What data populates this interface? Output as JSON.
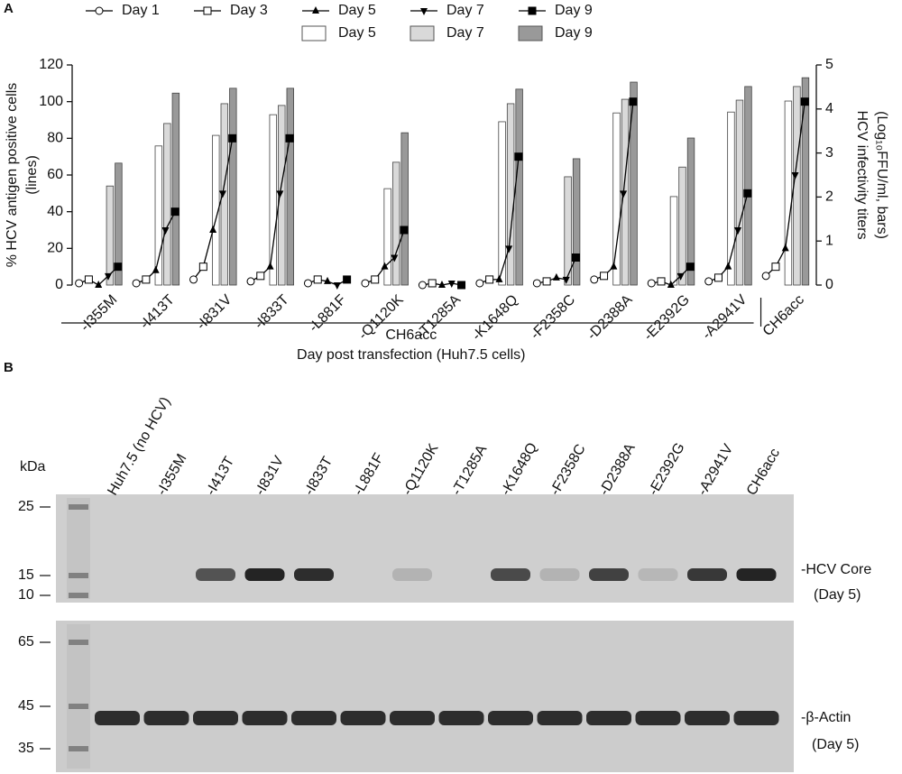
{
  "panel_labels": [
    "A",
    "B"
  ],
  "chart_data": {
    "type": "bar",
    "categories": [
      "-I355M",
      "-I413T",
      "-I831V",
      "-I833T",
      "-L881F",
      "-Q1120K",
      "-T1285A",
      "-K1648Q",
      "-F2358C",
      "-D2388A",
      "-E2392G",
      "-A2941V",
      "CH6acc"
    ],
    "group_label": "CH6acc",
    "xlabel": "Day post transfection (Huh7.5 cells)",
    "ylabel": [
      "% HCV antigen positive cells",
      "(lines)"
    ],
    "y2label": [
      "HCV infectivity titers",
      "(Log₁₀FFU/ml, bars)"
    ],
    "ylim": [
      0,
      120
    ],
    "yticks": [
      0,
      20,
      40,
      60,
      80,
      100,
      120
    ],
    "y2lim": [
      0,
      5
    ],
    "y2ticks": [
      0,
      1,
      2,
      3,
      4,
      5
    ],
    "series": [
      {
        "name": "Day 1",
        "type": "line",
        "marker": "circle-open",
        "color": "#000000",
        "values": [
          1,
          1,
          3,
          2,
          1,
          1,
          0,
          1,
          1,
          3,
          1,
          2,
          5
        ]
      },
      {
        "name": "Day 3",
        "type": "line",
        "marker": "square-open",
        "color": "#000000",
        "values": [
          3,
          3,
          10,
          5,
          3,
          3,
          1,
          3,
          2,
          5,
          2,
          4,
          10
        ]
      },
      {
        "name": "Day 5",
        "type": "line",
        "marker": "triangle-up",
        "color": "#000000",
        "values": [
          0,
          8,
          30,
          10,
          2,
          10,
          0,
          3,
          4,
          10,
          0,
          10,
          20
        ]
      },
      {
        "name": "Day 7",
        "type": "line",
        "marker": "triangle-down",
        "color": "#000000",
        "values": [
          5,
          30,
          50,
          50,
          0,
          15,
          1,
          20,
          3,
          50,
          5,
          30,
          60
        ]
      },
      {
        "name": "Day 9",
        "type": "line",
        "marker": "square",
        "color": "#000000",
        "values": [
          10,
          40,
          80,
          80,
          3,
          30,
          0,
          70,
          15,
          100,
          10,
          50,
          100
        ]
      },
      {
        "name": "Day 5",
        "type": "bar",
        "axis": "y2",
        "color": "#ffffff",
        "values": [
          null,
          3.16,
          3.4,
          3.87,
          null,
          2.19,
          null,
          3.71,
          null,
          3.91,
          2.01,
          3.93,
          4.18
        ]
      },
      {
        "name": "Day 7",
        "type": "bar",
        "axis": "y2",
        "color": "#d9d9d9",
        "values": [
          2.25,
          3.67,
          4.12,
          4.08,
          null,
          2.79,
          null,
          4.12,
          2.46,
          4.22,
          2.68,
          4.2,
          4.51
        ]
      },
      {
        "name": "Day 9",
        "type": "bar",
        "axis": "y2",
        "color": "#999999",
        "values": [
          2.77,
          4.36,
          4.47,
          4.47,
          null,
          3.46,
          null,
          4.45,
          2.87,
          4.61,
          3.34,
          4.51,
          4.71
        ]
      }
    ]
  },
  "blot": {
    "kda_label": "kDa",
    "lanes": [
      "Huh7.5 (no HCV)",
      "-I355M",
      "-I413T",
      "-I831V",
      "-I833T",
      "-L881F",
      "-Q1120K",
      "-T1285A",
      "-K1648Q",
      "-F2358C",
      "-D2388A",
      "-E2392G",
      "-A2941V",
      "CH6acc"
    ],
    "upper_markers": [
      "25",
      "15",
      "10"
    ],
    "lower_markers": [
      "65",
      "45",
      "35"
    ],
    "upper_label": [
      "-HCV Core",
      "(Day 5)"
    ],
    "lower_label": [
      "-β-Actin",
      "(Day 5)"
    ]
  }
}
